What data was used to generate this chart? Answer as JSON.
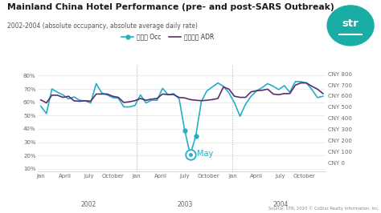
{
  "title": "Mainland China Hotel Performance (pre- and post-SARS Outbreak)",
  "subtitle": "2002-2004 (absolute occupancy, absolute average daily rate)",
  "source": "Source: STR, 2020 © CoStar Realty Information, Inc.",
  "legend": [
    "入住率 Occ",
    "平均房价 ADR"
  ],
  "occ_color": "#22afc7",
  "adr_color": "#5c2d6e",
  "background_color": "#ffffff",
  "ylim_left": [
    0.08,
    0.88
  ],
  "ylim_right": [
    -80,
    880
  ],
  "ylabel_left_ticks": [
    0.1,
    0.2,
    0.3,
    0.4,
    0.5,
    0.6,
    0.7,
    0.8
  ],
  "ylabel_left_labels": [
    "10%",
    "20%",
    "30%",
    "40%",
    "50%",
    "60%",
    "70%",
    "80%"
  ],
  "ylabel_right_ticks": [
    0,
    100,
    200,
    300,
    400,
    500,
    600,
    700,
    800
  ],
  "ylabel_right_labels": [
    "CNY 0",
    "CNY 100",
    "CNY 200",
    "CNY 300",
    "CNY 400",
    "CNY 500",
    "CNY 600",
    "CNY 700",
    "CNY 800"
  ],
  "x_month_labels": [
    "Jan",
    "April",
    "July",
    "October",
    "Jan",
    "April",
    "July",
    "October",
    "Jan",
    "April",
    "July",
    "October"
  ],
  "x_year_labels": [
    "2002",
    "2003",
    "2004"
  ],
  "may_annotation": "May",
  "occ_data": [
    0.57,
    0.515,
    0.7,
    0.675,
    0.655,
    0.625,
    0.64,
    0.615,
    0.61,
    0.595,
    0.74,
    0.67,
    0.655,
    0.635,
    0.63,
    0.565,
    0.565,
    0.575,
    0.655,
    0.595,
    0.615,
    0.615,
    0.705,
    0.655,
    0.665,
    0.625,
    0.39,
    0.205,
    0.345,
    0.605,
    0.685,
    0.715,
    0.745,
    0.72,
    0.67,
    0.595,
    0.495,
    0.585,
    0.645,
    0.685,
    0.71,
    0.74,
    0.72,
    0.695,
    0.725,
    0.675,
    0.755,
    0.755,
    0.745,
    0.695,
    0.635,
    0.645
  ],
  "adr_data": [
    565,
    538,
    608,
    607,
    588,
    598,
    557,
    553,
    558,
    553,
    618,
    618,
    618,
    598,
    588,
    542,
    548,
    558,
    578,
    562,
    572,
    578,
    618,
    613,
    613,
    587,
    583,
    568,
    562,
    558,
    562,
    568,
    578,
    682,
    662,
    598,
    588,
    588,
    638,
    648,
    652,
    662,
    618,
    612,
    622,
    622,
    698,
    718,
    718,
    688,
    662,
    622
  ],
  "may_occ_index": 27,
  "highlight_occ_indices": [
    26,
    27,
    28
  ],
  "str_logo_color": "#1aada5",
  "vline_color": "#aaaaaa",
  "grid_color": "#e0e0e0"
}
